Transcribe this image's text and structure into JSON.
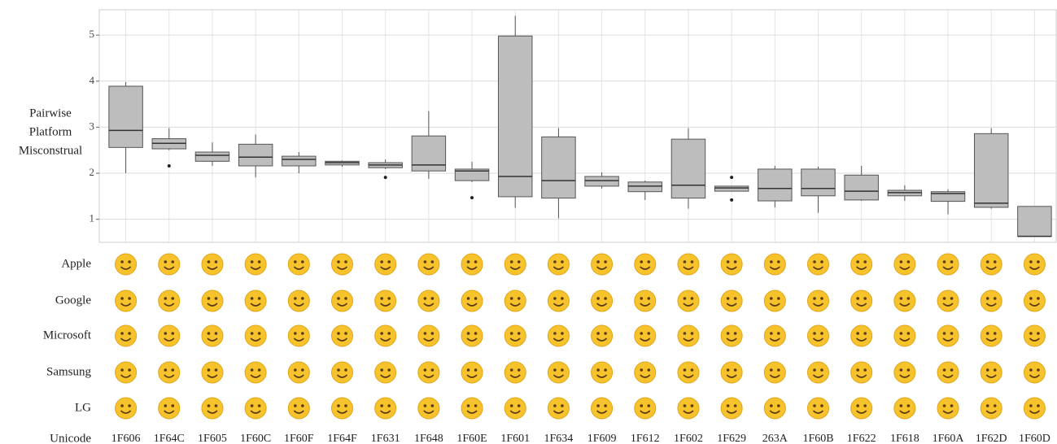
{
  "chart_data": {
    "type": "box",
    "y_label": [
      "Pairwise",
      "Platform",
      "Misconstrual"
    ],
    "x_label": "Unicode",
    "platforms": [
      "Apple",
      "Google",
      "Microsoft",
      "Samsung",
      "LG"
    ],
    "categories": [
      "1F606",
      "1F64C",
      "1F605",
      "1F60C",
      "1F60F",
      "1F64F",
      "1F631",
      "1F648",
      "1F60E",
      "1F601",
      "1F634",
      "1F609",
      "1F612",
      "1F602",
      "1F629",
      "263A",
      "1F60B",
      "1F622",
      "1F618",
      "1F60A",
      "1F62D",
      "1F60D"
    ],
    "boxes": [
      {
        "whisker_low": 2.0,
        "q1": 2.56,
        "median": 2.93,
        "q3": 3.89,
        "whisker_high": 3.98
      },
      {
        "whisker_low": 2.5,
        "q1": 2.53,
        "median": 2.65,
        "q3": 2.75,
        "whisker_high": 2.98,
        "outliers": [
          2.16
        ]
      },
      {
        "whisker_low": 2.16,
        "q1": 2.26,
        "median": 2.39,
        "q3": 2.46,
        "whisker_high": 2.67
      },
      {
        "whisker_low": 1.91,
        "q1": 2.16,
        "median": 2.35,
        "q3": 2.63,
        "whisker_high": 2.84
      },
      {
        "whisker_low": 2.0,
        "q1": 2.16,
        "median": 2.3,
        "q3": 2.37,
        "whisker_high": 2.46
      },
      {
        "whisker_low": 2.14,
        "q1": 2.18,
        "median": 2.23,
        "q3": 2.26,
        "whisker_high": 2.28
      },
      {
        "whisker_low": 2.09,
        "q1": 2.12,
        "median": 2.18,
        "q3": 2.23,
        "whisker_high": 2.3,
        "outliers": [
          1.91
        ]
      },
      {
        "whisker_low": 1.88,
        "q1": 2.05,
        "median": 2.18,
        "q3": 2.81,
        "whisker_high": 3.35
      },
      {
        "whisker_low": 1.81,
        "q1": 1.84,
        "median": 2.05,
        "q3": 2.09,
        "whisker_high": 2.25,
        "outliers": [
          1.47
        ]
      },
      {
        "whisker_low": 1.25,
        "q1": 1.49,
        "median": 1.93,
        "q3": 4.98,
        "whisker_high": 5.42
      },
      {
        "whisker_low": 1.02,
        "q1": 1.46,
        "median": 1.84,
        "q3": 2.79,
        "whisker_high": 2.98
      },
      {
        "whisker_low": 1.67,
        "q1": 1.72,
        "median": 1.84,
        "q3": 1.93,
        "whisker_high": 2.02
      },
      {
        "whisker_low": 1.42,
        "q1": 1.6,
        "median": 1.72,
        "q3": 1.81,
        "whisker_high": 1.84
      },
      {
        "whisker_low": 1.23,
        "q1": 1.46,
        "median": 1.74,
        "q3": 2.74,
        "whisker_high": 2.98
      },
      {
        "whisker_low": 1.61,
        "q1": 1.61,
        "median": 1.68,
        "q3": 1.72,
        "whisker_high": 1.72,
        "outliers": [
          1.91,
          1.42
        ]
      },
      {
        "whisker_low": 1.26,
        "q1": 1.4,
        "median": 1.67,
        "q3": 2.09,
        "whisker_high": 2.16
      },
      {
        "whisker_low": 1.14,
        "q1": 1.51,
        "median": 1.67,
        "q3": 2.09,
        "whisker_high": 2.14
      },
      {
        "whisker_low": 1.4,
        "q1": 1.42,
        "median": 1.61,
        "q3": 1.96,
        "whisker_high": 2.16
      },
      {
        "whisker_low": 1.4,
        "q1": 1.51,
        "median": 1.58,
        "q3": 1.63,
        "whisker_high": 1.74
      },
      {
        "whisker_low": 1.11,
        "q1": 1.39,
        "median": 1.56,
        "q3": 1.6,
        "whisker_high": 1.65
      },
      {
        "whisker_low": 1.23,
        "q1": 1.26,
        "median": 1.35,
        "q3": 2.86,
        "whisker_high": 2.98
      },
      {
        "whisker_low": 0.63,
        "q1": 0.63,
        "median": 0.63,
        "q3": 1.28,
        "whisker_high": 1.28
      }
    ],
    "color": "#bdbdbd",
    "ylim": [
      0.5,
      5.55
    ],
    "yticks": [
      1,
      2,
      3,
      4,
      5
    ],
    "grid": true
  }
}
